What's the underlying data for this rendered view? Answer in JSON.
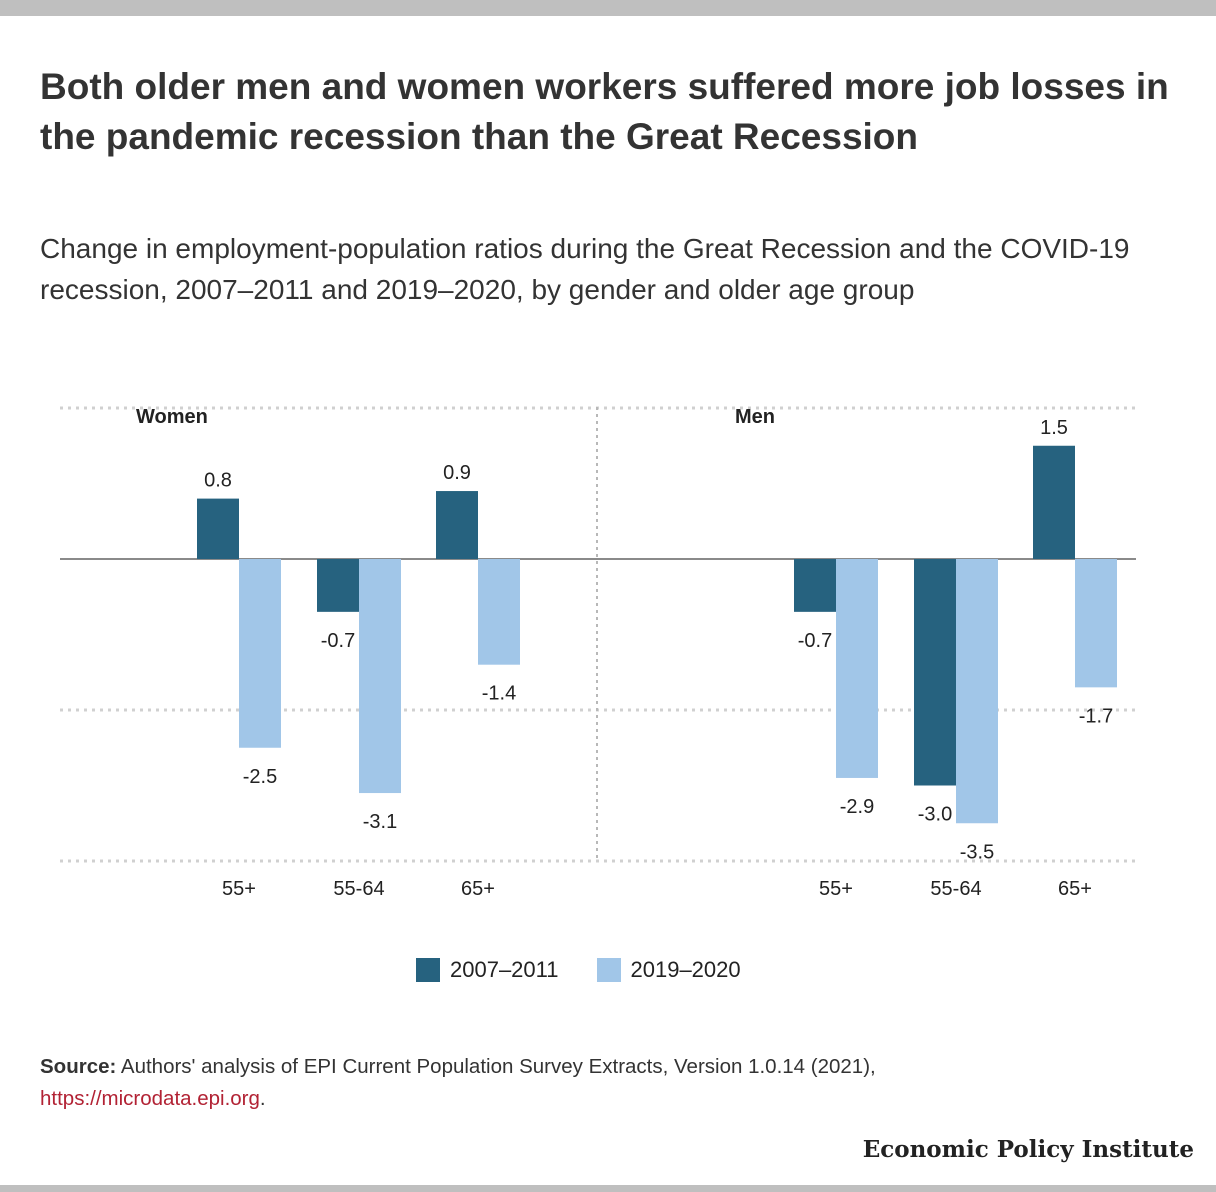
{
  "title": "Both older men and women workers suffered more job losses in the pandemic recession than the Great Recession",
  "subtitle": "Change in employment-population ratios during the Great Recession and the COVID-19 recession, 2007–2011 and 2019–2020, by gender and older age group",
  "colors": {
    "dark": "#26627f",
    "light": "#a1c6e8",
    "link": "#b22234"
  },
  "chart_data": {
    "type": "bar",
    "categories": [
      "55+",
      "55-64",
      "65+"
    ],
    "panels": [
      {
        "name": "Women",
        "series": [
          {
            "name": "2007–2011",
            "values": [
              0.8,
              -0.7,
              0.9
            ],
            "labels": [
              "0.8",
              "-0.7",
              "0.9"
            ]
          },
          {
            "name": "2019–2020",
            "values": [
              -2.5,
              -3.1,
              -1.4
            ],
            "labels": [
              "-2.5",
              "-3.1",
              "-1.4"
            ]
          }
        ]
      },
      {
        "name": "Men",
        "series": [
          {
            "name": "2007–2011",
            "values": [
              -0.7,
              -3.0,
              1.5
            ],
            "labels": [
              "-0.7",
              "-3.0",
              "1.5"
            ]
          },
          {
            "name": "2019–2020",
            "values": [
              -2.9,
              -3.5,
              -1.7
            ],
            "labels": [
              "-2.9",
              "-3.5",
              "-1.7"
            ]
          }
        ]
      }
    ],
    "ylim": [
      -4,
      2
    ],
    "grid": true,
    "legend": "bottom"
  },
  "legend": {
    "items": [
      "2007–2011",
      "2019–2020"
    ]
  },
  "source": {
    "label": "Source:",
    "text": " Authors' analysis of EPI Current Population Survey Extracts, Version 1.0.14 (2021), ",
    "link": "https://microdata.epi.org",
    "end": "."
  },
  "brand": "Economic Policy Institute"
}
